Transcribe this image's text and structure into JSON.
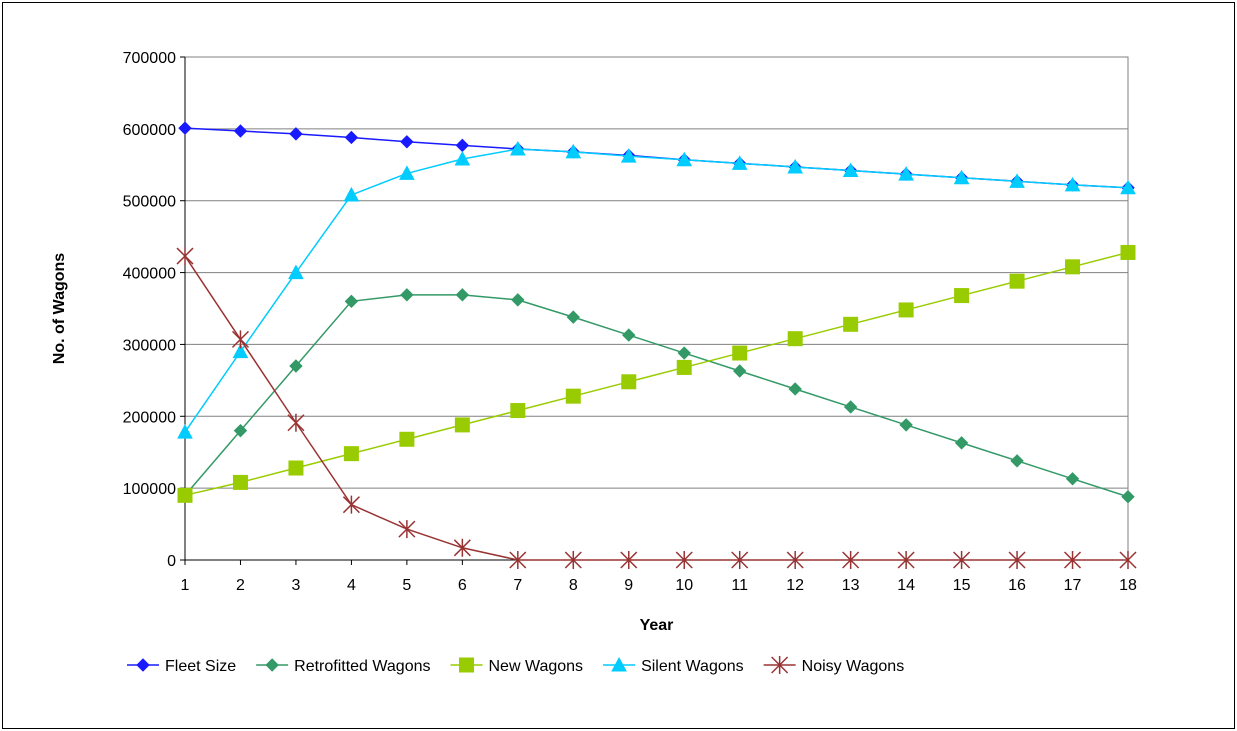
{
  "chart_data": {
    "type": "line",
    "xlabel": "Year",
    "ylabel": "No. of Wagons",
    "x": [
      1,
      2,
      3,
      4,
      5,
      6,
      7,
      8,
      9,
      10,
      11,
      12,
      13,
      14,
      15,
      16,
      17,
      18
    ],
    "ylim": [
      0,
      700000
    ],
    "yticks": [
      0,
      100000,
      200000,
      300000,
      400000,
      500000,
      600000,
      700000
    ],
    "grid": "horizontal",
    "legend_position": "bottom",
    "series": [
      {
        "name": "Fleet Size",
        "color": "#1a1aff",
        "marker": "diamond",
        "values": [
          601000,
          597000,
          593000,
          588000,
          582000,
          577000,
          572000,
          568000,
          563000,
          557000,
          552000,
          547000,
          542000,
          537000,
          532000,
          527000,
          522000,
          518000
        ]
      },
      {
        "name": "Retrofitted Wagons",
        "color": "#339966",
        "marker": "diamond",
        "values": [
          90000,
          180000,
          270000,
          360000,
          369000,
          369000,
          362000,
          338000,
          313000,
          288000,
          263000,
          238000,
          213000,
          188000,
          163000,
          138000,
          113000,
          88000
        ]
      },
      {
        "name": "New Wagons",
        "color": "#99cc00",
        "marker": "square",
        "values": [
          90000,
          108000,
          128000,
          148000,
          168000,
          188000,
          208000,
          228000,
          248000,
          268000,
          288000,
          308000,
          328000,
          348000,
          368000,
          388000,
          408000,
          428000
        ]
      },
      {
        "name": "Silent Wagons",
        "color": "#00ccff",
        "marker": "triangle",
        "values": [
          178000,
          290000,
          400000,
          508000,
          538000,
          558000,
          572000,
          568000,
          562000,
          557000,
          552000,
          547000,
          542000,
          537000,
          532000,
          527000,
          522000,
          518000
        ]
      },
      {
        "name": "Noisy Wagons",
        "color": "#993333",
        "marker": "star",
        "values": [
          423000,
          307000,
          191000,
          77000,
          43000,
          17000,
          0,
          0,
          0,
          0,
          0,
          0,
          0,
          0,
          0,
          0,
          0,
          0
        ]
      }
    ]
  }
}
